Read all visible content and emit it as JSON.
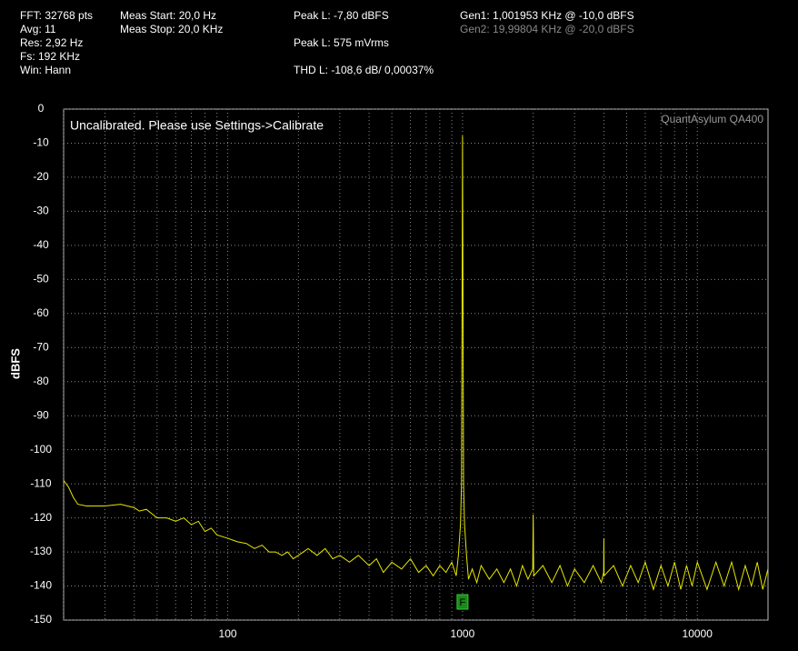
{
  "readouts": {
    "col1": [
      "FFT: 32768 pts",
      "Avg: 11",
      "Res: 2,92 Hz",
      "Fs: 192 KHz",
      "Win: Hann"
    ],
    "col2": [
      "Meas Start: 20,0 Hz",
      "Meas Stop: 20,0 KHz"
    ],
    "col3": [
      "Peak L: -7,80 dBFS",
      "Peak L: 575 mVrms",
      "THD L: -108,6 dB/ 0,00037%"
    ],
    "col4": [
      "Gen1: 1,001953 KHz @ -10,0  dBFS",
      "Gen2: 19,99804 KHz @ -20,0  dBFS"
    ]
  },
  "chart_data": {
    "type": "line",
    "annotation": "Uncalibrated. Please use Settings->Calibrate",
    "watermark": "QuantAsylum QA400",
    "y_label": "dBFS",
    "xscale": "log",
    "grid": true,
    "color": "#e6e600",
    "xlim": [
      20,
      20000
    ],
    "ylim": [
      -150,
      0
    ],
    "xticks": [
      100,
      1000,
      10000
    ],
    "x_grid": [
      20,
      30,
      40,
      50,
      60,
      70,
      80,
      90,
      100,
      200,
      300,
      400,
      500,
      600,
      700,
      800,
      900,
      1000,
      2000,
      3000,
      4000,
      5000,
      6000,
      7000,
      8000,
      9000,
      10000
    ],
    "yticks": [
      0,
      -10,
      -20,
      -30,
      -40,
      -50,
      -60,
      -70,
      -80,
      -90,
      -100,
      -110,
      -120,
      -130,
      -140,
      -150
    ],
    "marker": {
      "x": 1000,
      "label": "F"
    },
    "x": [
      20,
      21,
      22,
      23,
      25,
      30,
      35,
      40,
      42,
      45,
      48,
      50,
      55,
      60,
      65,
      70,
      75,
      80,
      85,
      90,
      100,
      110,
      120,
      130,
      140,
      150,
      160,
      170,
      180,
      190,
      200,
      220,
      240,
      260,
      280,
      300,
      330,
      360,
      400,
      430,
      460,
      500,
      550,
      600,
      650,
      700,
      750,
      800,
      850,
      900,
      940,
      960,
      980,
      990,
      995,
      1000,
      1005,
      1010,
      1020,
      1040,
      1060,
      1100,
      1150,
      1200,
      1300,
      1400,
      1500,
      1600,
      1700,
      1800,
      1900,
      1990,
      2000,
      2010,
      2200,
      2400,
      2600,
      2800,
      3000,
      3300,
      3600,
      3900,
      3990,
      4000,
      4010,
      4400,
      4800,
      5200,
      5600,
      6000,
      6500,
      7000,
      7500,
      8000,
      8500,
      9000,
      9500,
      10000,
      11000,
      12000,
      13000,
      14000,
      15000,
      16000,
      17000,
      18000,
      19000,
      20000
    ],
    "values": [
      -109,
      -111,
      -114,
      -116,
      -116.5,
      -116.5,
      -116,
      -117,
      -118,
      -117.5,
      -119,
      -120,
      -120,
      -121,
      -120,
      -122,
      -121,
      -124,
      -123,
      -125,
      -126,
      -127,
      -127.5,
      -129,
      -128,
      -130,
      -130,
      -131,
      -130,
      -132,
      -131,
      -129,
      -131,
      -129,
      -132,
      -131,
      -133,
      -131,
      -134,
      -132,
      -136,
      -133,
      -135,
      -132,
      -136,
      -134,
      -137,
      -134,
      -136,
      -133,
      -137,
      -131,
      -122,
      -110,
      -60,
      -7.8,
      -60,
      -110,
      -122,
      -131,
      -138,
      -135,
      -139,
      -134,
      -138,
      -135,
      -139,
      -135,
      -140,
      -134,
      -138,
      -135,
      -119,
      -137,
      -134,
      -139,
      -134,
      -140,
      -135,
      -139,
      -134,
      -139,
      -136,
      -126,
      -137,
      -134,
      -140,
      -134,
      -139,
      -133,
      -141,
      -134,
      -140,
      -133,
      -141,
      -134,
      -140,
      -133,
      -141,
      -133,
      -140,
      -133,
      -141,
      -134,
      -140,
      -133,
      -141,
      -135
    ]
  }
}
